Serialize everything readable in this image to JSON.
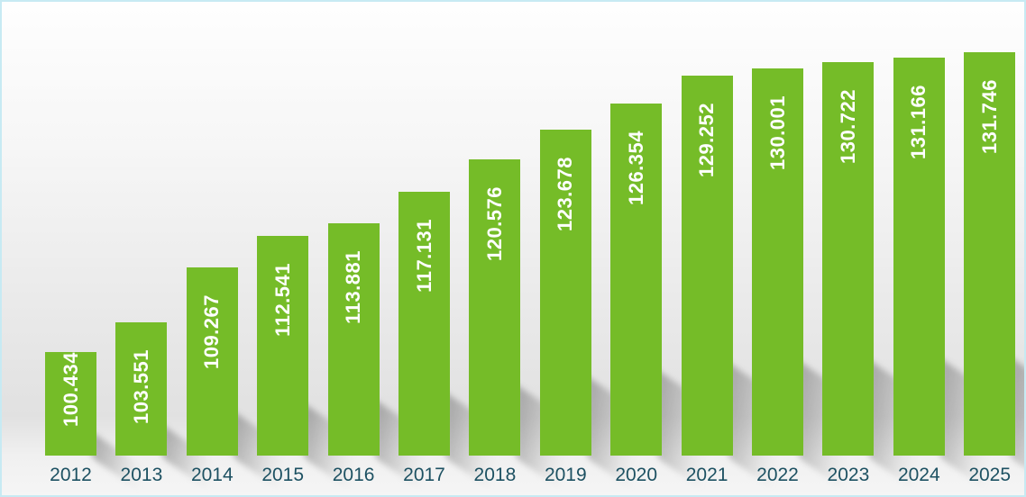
{
  "chart_data": {
    "type": "bar",
    "title": "",
    "xlabel": "",
    "ylabel": "",
    "categories": [
      "2012",
      "2013",
      "2014",
      "2015",
      "2016",
      "2017",
      "2018",
      "2019",
      "2020",
      "2021",
      "2022",
      "2023",
      "2024",
      "2025"
    ],
    "values": [
      100.434,
      103.551,
      109.267,
      112.541,
      113.881,
      117.131,
      120.576,
      123.678,
      126.354,
      129.252,
      130.001,
      130.722,
      131.166,
      131.746
    ],
    "value_labels": [
      "100.434",
      "103.551",
      "109.267",
      "112.541",
      "113.881",
      "117.131",
      "120.576",
      "123.678",
      "126.354",
      "129.252",
      "130.001",
      "130.722",
      "131.166",
      "131.746"
    ],
    "ylim": [
      89.6,
      133
    ],
    "grid": false,
    "legend": "none",
    "data_labels_position": "inside-end-rotated",
    "colors": {
      "bar": "#75bc28",
      "value_label": "#ffffff",
      "category_label": "#1d5162",
      "frame_border": "#c7eaf3",
      "shadow": "#8a8a8a"
    }
  }
}
